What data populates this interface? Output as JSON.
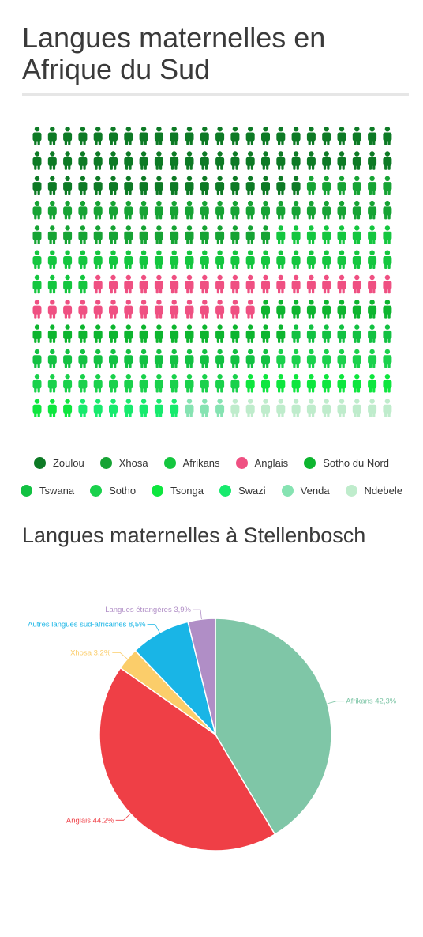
{
  "title1": "Langues maternelles en Afrique du Sud",
  "title2": "Langues maternelles à Stellenbosch",
  "chart_data": [
    {
      "type": "pictogram",
      "title": "Langues maternelles en Afrique du Sud",
      "icons_per_row": 24,
      "rows": 12,
      "categories": [
        "Zoulou",
        "Xhosa",
        "Afrikans",
        "Anglais",
        "Sotho du Nord",
        "Tswana",
        "Sotho",
        "Tsonga",
        "Swazi",
        "Venda",
        "Ndebele"
      ],
      "colors": [
        "#0d7a25",
        "#16a334",
        "#14c63f",
        "#ef5082",
        "#0db52f",
        "#12c142",
        "#1ad14c",
        "#0ee63e",
        "#17ea6d",
        "#86e3b2",
        "#bfeccc"
      ],
      "values": [
        66,
        46,
        36,
        35,
        26,
        23,
        22,
        13,
        7,
        3,
        3
      ],
      "legend_position": "bottom"
    },
    {
      "type": "pie",
      "title": "Langues maternelles à Stellenbosch",
      "categories": [
        "Afrikans",
        "Anglais",
        "Xhosa",
        "Autres langues sud-africaines",
        "Langues étrangères"
      ],
      "labels": [
        "Afrikans 42,3%",
        "Anglais 44.2%",
        "Xhosa 3,2%",
        "Autres langues sud-africaines 8,5%",
        "Langues étrangères 3,9%"
      ],
      "values": [
        42.3,
        44.2,
        3.2,
        8.5,
        3.9
      ],
      "colors": [
        "#7fc6a7",
        "#ef3f46",
        "#fbcd6a",
        "#19b5e6",
        "#b08ec6"
      ],
      "start": "top, clockwise"
    }
  ]
}
